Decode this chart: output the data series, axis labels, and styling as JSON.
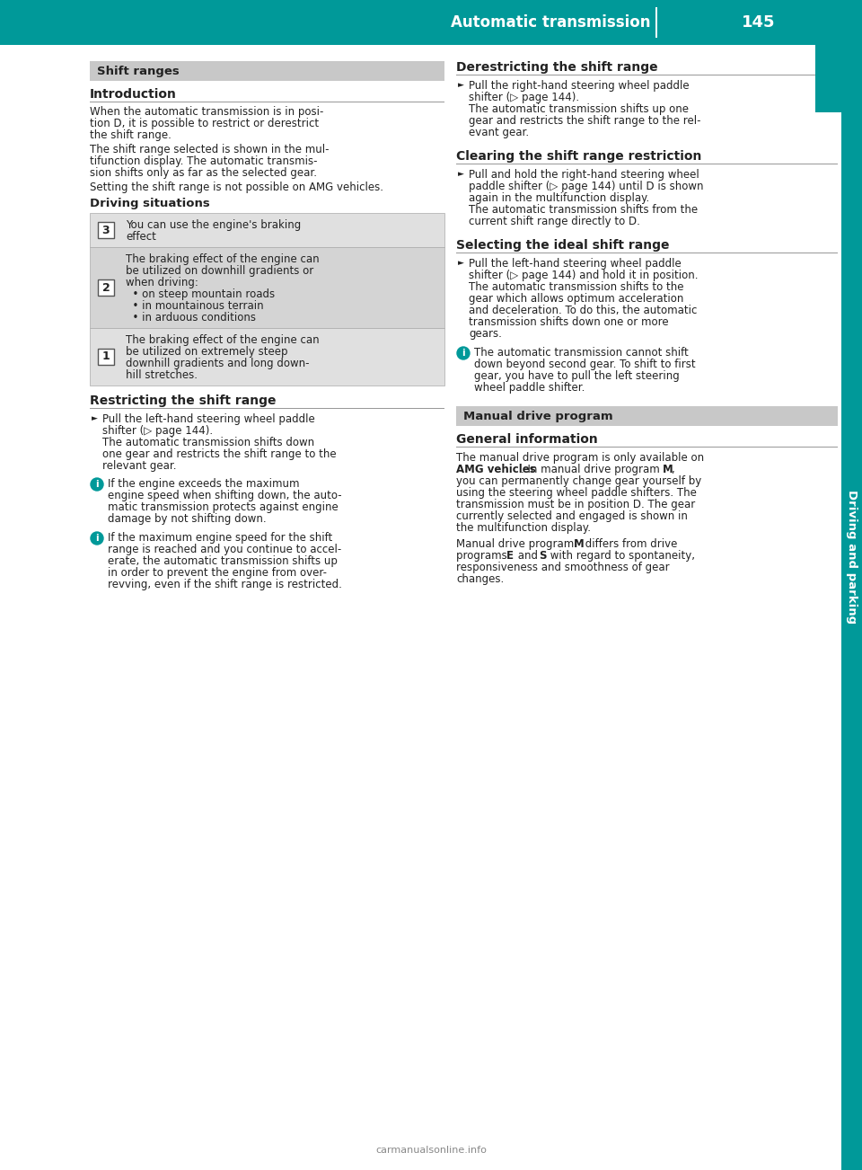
{
  "page_bg": "#ffffff",
  "header_bg": "#009999",
  "header_text": "Automatic transmission",
  "header_page": "145",
  "header_text_color": "#ffffff",
  "sidebar_bg": "#009999",
  "sidebar_text": "Driving and parking",
  "sidebar_text_color": "#ffffff",
  "section1_header": "Shift ranges",
  "section1_header_bg": "#c8c8c8",
  "intro_title": "Introduction",
  "intro_lines": [
    "When the automatic transmission is in posi-",
    "tion D, it is possible to restrict or derestrict",
    "the shift range."
  ],
  "intro_para2": [
    "The shift range selected is shown in the mul-",
    "tifunction display. The automatic transmis-",
    "sion shifts only as far as the selected gear."
  ],
  "intro_para3": "Setting the shift range is not possible on AMG vehicles.",
  "driving_sit_title": "Driving situations",
  "row3_gear": "3",
  "row3_lines": [
    "You can use the engine's braking",
    "effect"
  ],
  "row2_gear": "2",
  "row2_lines": [
    "The braking effect of the engine can",
    "be utilized on downhill gradients or",
    "when driving:",
    "  • on steep mountain roads",
    "  • in mountainous terrain",
    "  • in arduous conditions"
  ],
  "row1_gear": "1",
  "row1_lines": [
    "The braking effect of the engine can",
    "be utilized on extremely steep",
    "downhill gradients and long down-",
    "hill stretches."
  ],
  "restrict_title": "Restricting the shift range",
  "restrict_lines": [
    "Pull the left-hand steering wheel paddle",
    "shifter (▷ page 144).",
    "The automatic transmission shifts down",
    "one gear and restricts the shift range to the",
    "relevant gear."
  ],
  "info1_lines": [
    "If the engine exceeds the maximum",
    "engine speed when shifting down, the auto-",
    "matic transmission protects against engine",
    "damage by not shifting down."
  ],
  "info2_lines": [
    "If the maximum engine speed for the shift",
    "range is reached and you continue to accel-",
    "erate, the automatic transmission shifts up",
    "in order to prevent the engine from over-",
    "revving, even if the shift range is restricted."
  ],
  "right_derestrict_title": "Derestricting the shift range",
  "right_derestrict_lines": [
    "Pull the right-hand steering wheel paddle",
    "shifter (▷ page 144).",
    "The automatic transmission shifts up one",
    "gear and restricts the shift range to the rel-",
    "evant gear."
  ],
  "right_clear_title": "Clearing the shift range restriction",
  "right_clear_lines": [
    "Pull and hold the right-hand steering wheel",
    "paddle shifter (▷ page 144) until D is shown",
    "again in the multifunction display.",
    "The automatic transmission shifts from the",
    "current shift range directly to D."
  ],
  "right_select_title": "Selecting the ideal shift range",
  "right_select_lines": [
    "Pull the left-hand steering wheel paddle",
    "shifter (▷ page 144) and hold it in position.",
    "The automatic transmission shifts to the",
    "gear which allows optimum acceleration",
    "and deceleration. To do this, the automatic",
    "transmission shifts down one or more",
    "gears."
  ],
  "right_info_lines": [
    "The automatic transmission cannot shift",
    "down beyond second gear. To shift to first",
    "gear, you have to pull the left steering",
    "wheel paddle shifter."
  ],
  "section2_header": "Manual drive program",
  "general_title": "General information",
  "general_para1": [
    "The manual drive program is only available on",
    "AMG vehicles. In manual drive program M,",
    "you can permanently change gear yourself by",
    "using the steering wheel paddle shifters. The",
    "transmission must be in position D. The gear",
    "currently selected and engaged is shown in",
    "the multifunction display."
  ],
  "general_para2": [
    "Manual drive program M differs from drive",
    "programs E and S with regard to spontaneity,",
    "responsiveness and smoothness of gear",
    "changes."
  ],
  "footer_text": "carmanualsonline.info",
  "footer_color": "#888888",
  "teal_color": "#009999",
  "text_color": "#222222"
}
